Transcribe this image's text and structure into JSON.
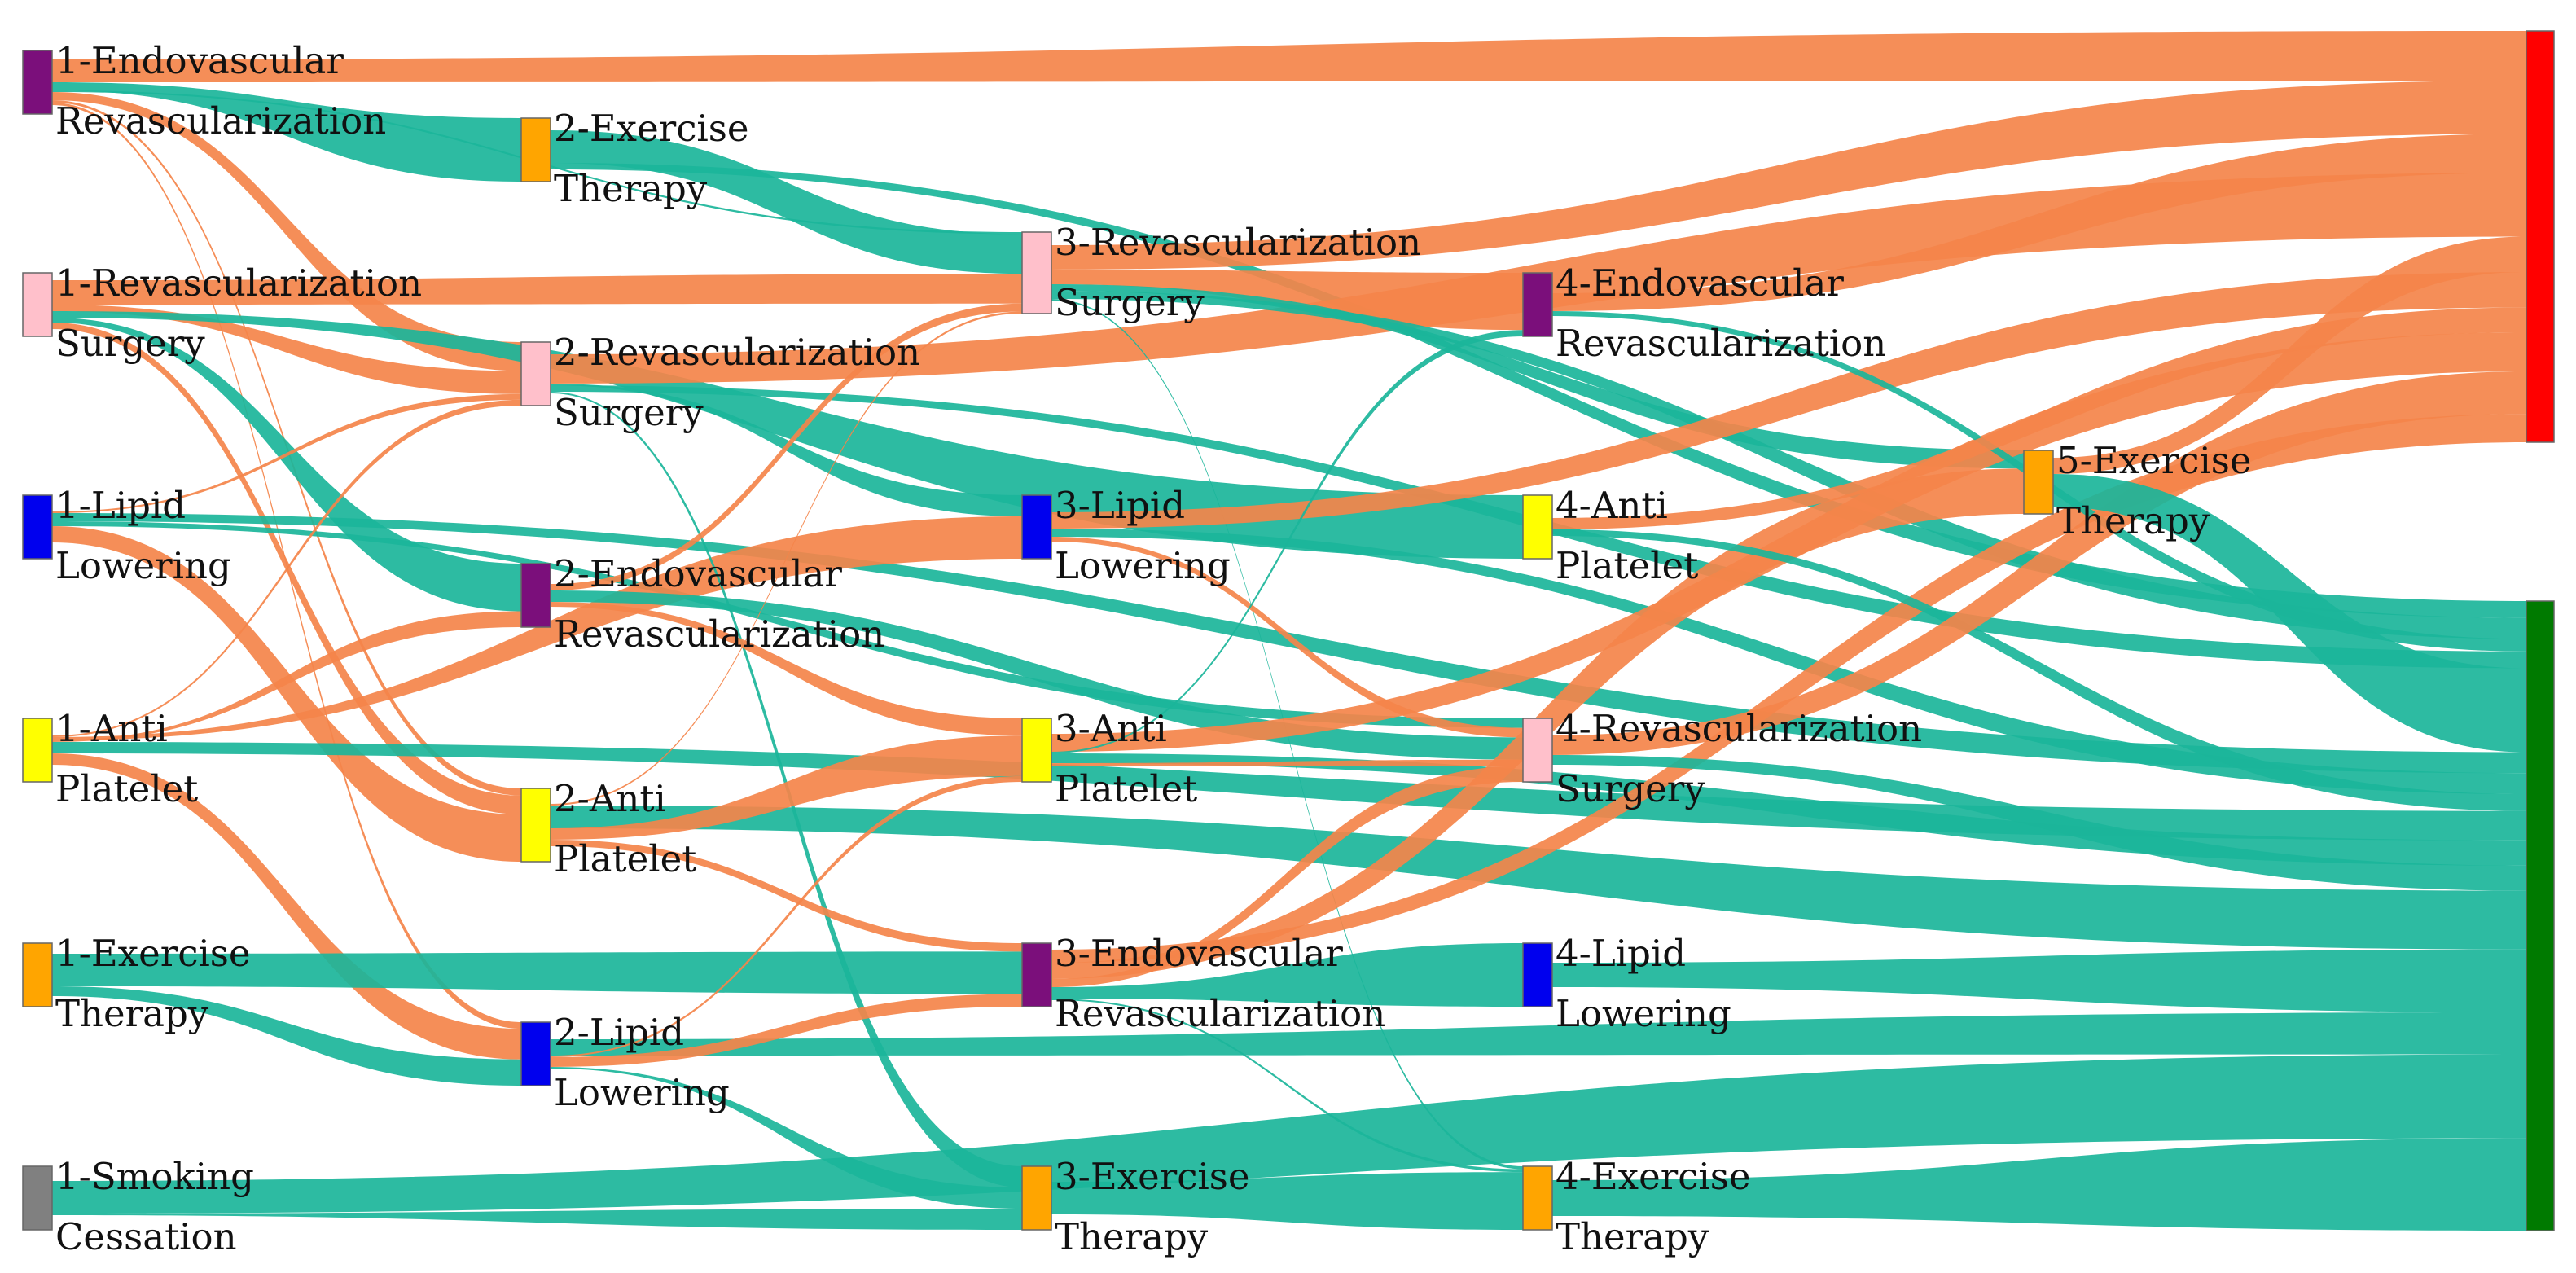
{
  "colors": {
    "amputation_flow": "#f4844a",
    "amputation_flow_dark": "#f06a1c",
    "survival_flow": "#1bb59a",
    "survival_flow_dark": "#12a389",
    "endovascular": "#7b0f7b",
    "revascularization_surgery": "#ffc0cb",
    "lipid_lowering": "#0000ee",
    "anti_platelet": "#ffff00",
    "exercise_therapy": "#ffa500",
    "smoking_cessation": "#808080",
    "outcome_red": "#ff0000",
    "outcome_green": "#007a00",
    "node_stroke": "#666666"
  },
  "nodes": [
    {
      "id": "n1_endo",
      "lines": [
        "1-Endovascular",
        "Revascularization"
      ],
      "color": "endovascular"
    },
    {
      "id": "n1_surg",
      "lines": [
        "1-Revascularization",
        "Surgery"
      ],
      "color": "revascularization_surgery"
    },
    {
      "id": "n1_lipid",
      "lines": [
        "1-Lipid",
        "Lowering"
      ],
      "color": "lipid_lowering"
    },
    {
      "id": "n1_anti",
      "lines": [
        "1-Anti",
        "Platelet"
      ],
      "color": "anti_platelet"
    },
    {
      "id": "n1_exer",
      "lines": [
        "1-Exercise",
        "Therapy"
      ],
      "color": "exercise_therapy"
    },
    {
      "id": "n1_smoke",
      "lines": [
        "1-Smoking",
        "Cessation"
      ],
      "color": "smoking_cessation"
    },
    {
      "id": "n2_exer",
      "lines": [
        "2-Exercise",
        "Therapy"
      ],
      "color": "exercise_therapy"
    },
    {
      "id": "n2_surg",
      "lines": [
        "2-Revascularization",
        "Surgery"
      ],
      "color": "revascularization_surgery"
    },
    {
      "id": "n2_endo",
      "lines": [
        "2-Endovascular",
        "Revascularization"
      ],
      "color": "endovascular"
    },
    {
      "id": "n2_anti",
      "lines": [
        "2-Anti",
        "Platelet"
      ],
      "color": "anti_platelet"
    },
    {
      "id": "n2_lipid",
      "lines": [
        "2-Lipid",
        "Lowering"
      ],
      "color": "lipid_lowering"
    },
    {
      "id": "n3_surg",
      "lines": [
        "3-Revascularization",
        "Surgery"
      ],
      "color": "revascularization_surgery"
    },
    {
      "id": "n3_lipid",
      "lines": [
        "3-Lipid",
        "Lowering"
      ],
      "color": "lipid_lowering"
    },
    {
      "id": "n3_anti",
      "lines": [
        "3-Anti",
        "Platelet"
      ],
      "color": "anti_platelet"
    },
    {
      "id": "n3_endo",
      "lines": [
        "3-Endovascular",
        "Revascularization"
      ],
      "color": "endovascular"
    },
    {
      "id": "n3_exer",
      "lines": [
        "3-Exercise",
        "Therapy"
      ],
      "color": "exercise_therapy"
    },
    {
      "id": "n4_endo",
      "lines": [
        "4-Endovascular",
        "Revascularization"
      ],
      "color": "endovascular"
    },
    {
      "id": "n4_anti",
      "lines": [
        "4-Anti",
        "Platelet"
      ],
      "color": "anti_platelet"
    },
    {
      "id": "n4_surg",
      "lines": [
        "4-Revascularization",
        "Surgery"
      ],
      "color": "revascularization_surgery"
    },
    {
      "id": "n4_lipid",
      "lines": [
        "4-Lipid",
        "Lowering"
      ],
      "color": "lipid_lowering"
    },
    {
      "id": "n4_exer",
      "lines": [
        "4-Exercise",
        "Therapy"
      ],
      "color": "exercise_therapy"
    },
    {
      "id": "n5_exer",
      "lines": [
        "5-Exercise",
        "Therapy"
      ],
      "color": "exercise_therapy"
    },
    {
      "id": "out_red",
      "lines": [],
      "color": "outcome_red"
    },
    {
      "id": "out_green",
      "lines": [],
      "color": "outcome_green"
    }
  ],
  "links": [
    {
      "s": "n1_endo",
      "t": "out_red",
      "w": 28,
      "c": "o"
    },
    {
      "s": "n1_endo",
      "t": "n2_exer",
      "w": 10,
      "c": "g"
    },
    {
      "s": "n1_endo",
      "t": "n2_surg",
      "w": 10,
      "c": "o"
    },
    {
      "s": "n1_endo",
      "t": "n2_anti",
      "w": 3,
      "c": "o"
    },
    {
      "s": "n1_endo",
      "t": "n2_lipid",
      "w": 3,
      "c": "o"
    },
    {
      "s": "n1_endo",
      "t": "n3_surg",
      "w": 2,
      "c": "g"
    },
    {
      "s": "n1_surg",
      "t": "n3_surg",
      "w": 30,
      "c": "o"
    },
    {
      "s": "n1_surg",
      "t": "n2_surg",
      "w": 8,
      "c": "o"
    },
    {
      "s": "n1_surg",
      "t": "n4_anti",
      "w": 8,
      "c": "g"
    },
    {
      "s": "n1_surg",
      "t": "n2_anti",
      "w": 8,
      "c": "o"
    },
    {
      "s": "n1_surg",
      "t": "n2_endo",
      "w": 6,
      "c": "g"
    },
    {
      "s": "n1_lipid",
      "t": "n2_anti",
      "w": 20,
      "c": "o"
    },
    {
      "s": "n1_lipid",
      "t": "out_green",
      "w": 10,
      "c": "g"
    },
    {
      "s": "n1_lipid",
      "t": "n2_surg",
      "w": 2,
      "c": "o"
    },
    {
      "s": "n1_lipid",
      "t": "n4_surg",
      "w": 6,
      "c": "g"
    },
    {
      "s": "n1_anti",
      "t": "n2_lipid",
      "w": 14,
      "c": "o"
    },
    {
      "s": "n1_anti",
      "t": "out_green",
      "w": 14,
      "c": "g"
    },
    {
      "s": "n1_anti",
      "t": "n3_lipid",
      "w": 4,
      "c": "o"
    },
    {
      "s": "n1_anti",
      "t": "n2_surg",
      "w": 2,
      "c": "o"
    },
    {
      "s": "n1_anti",
      "t": "n2_endo",
      "w": 2,
      "c": "o"
    },
    {
      "s": "n1_exer",
      "t": "n3_endo",
      "w": 40,
      "c": "g"
    },
    {
      "s": "n1_exer",
      "t": "n2_lipid",
      "w": 12,
      "c": "g"
    },
    {
      "s": "n1_smoke",
      "t": "out_green",
      "w": 40,
      "c": "g"
    },
    {
      "s": "n1_smoke",
      "t": "n3_exer",
      "w": 2,
      "c": "g"
    },
    {
      "s": "n2_exer",
      "t": "n3_surg",
      "w": 40,
      "c": "g"
    },
    {
      "s": "n2_exer",
      "t": "out_green",
      "w": 8,
      "c": "g"
    },
    {
      "s": "n2_surg",
      "t": "out_red",
      "w": 36,
      "c": "o"
    },
    {
      "s": "n2_surg",
      "t": "out_green",
      "w": 8,
      "c": "g"
    },
    {
      "s": "n2_surg",
      "t": "n3_lipid",
      "w": 2,
      "c": "g"
    },
    {
      "s": "n2_surg",
      "t": "n3_exer",
      "w": 2,
      "c": "g"
    },
    {
      "s": "n2_endo",
      "t": "n4_surg",
      "w": 14,
      "c": "g"
    },
    {
      "s": "n2_endo",
      "t": "n3_surg",
      "w": 8,
      "c": "o"
    },
    {
      "s": "n2_endo",
      "t": "n3_anti",
      "w": 6,
      "c": "o"
    },
    {
      "s": "n2_anti",
      "t": "out_green",
      "w": 28,
      "c": "g"
    },
    {
      "s": "n2_anti",
      "t": "n3_anti",
      "w": 14,
      "c": "o"
    },
    {
      "s": "n2_anti",
      "t": "n3_endo",
      "w": 8,
      "c": "o"
    },
    {
      "s": "n2_anti",
      "t": "n3_surg",
      "w": 2,
      "c": "o"
    },
    {
      "s": "n2_lipid",
      "t": "out_green",
      "w": 20,
      "c": "g"
    },
    {
      "s": "n2_lipid",
      "t": "n3_endo",
      "w": 12,
      "c": "o"
    },
    {
      "s": "n2_lipid",
      "t": "n3_anti",
      "w": 2,
      "c": "o"
    },
    {
      "s": "n2_lipid",
      "t": "n3_exer",
      "w": 2,
      "c": "g"
    },
    {
      "s": "n3_surg",
      "t": "out_red",
      "w": 30,
      "c": "o"
    },
    {
      "s": "n3_surg",
      "t": "n4_endo",
      "w": 18,
      "c": "o"
    },
    {
      "s": "n3_surg",
      "t": "n5_exer",
      "w": 8,
      "c": "g"
    },
    {
      "s": "n3_surg",
      "t": "out_green",
      "w": 10,
      "c": "g"
    },
    {
      "s": "n3_surg",
      "t": "n4_exer",
      "w": 2,
      "c": "g"
    },
    {
      "s": "n3_lipid",
      "t": "out_red",
      "w": 20,
      "c": "o"
    },
    {
      "s": "n3_lipid",
      "t": "out_green",
      "w": 10,
      "c": "g"
    },
    {
      "s": "n3_lipid",
      "t": "n4_surg",
      "w": 6,
      "c": "o"
    },
    {
      "s": "n3_anti",
      "t": "out_red",
      "w": 22,
      "c": "o"
    },
    {
      "s": "n3_anti",
      "t": "out_green",
      "w": 12,
      "c": "g"
    },
    {
      "s": "n3_anti",
      "t": "n4_surg",
      "w": 4,
      "c": "o"
    },
    {
      "s": "n3_anti",
      "t": "n4_endo",
      "w": 2,
      "c": "g"
    },
    {
      "s": "n3_endo",
      "t": "n5_exer",
      "w": 20,
      "c": "o"
    },
    {
      "s": "n3_endo",
      "t": "n4_surg",
      "w": 10,
      "c": "o"
    },
    {
      "s": "n3_endo",
      "t": "n4_lipid",
      "w": 14,
      "c": "g"
    },
    {
      "s": "n3_endo",
      "t": "out_red",
      "w": 16,
      "c": "o"
    },
    {
      "s": "n3_endo",
      "t": "n4_exer",
      "w": 2,
      "c": "g"
    },
    {
      "s": "n3_exer",
      "t": "n4_exer",
      "w": 40,
      "c": "g"
    },
    {
      "s": "n4_endo",
      "t": "out_red",
      "w": 22,
      "c": "o"
    },
    {
      "s": "n4_endo",
      "t": "out_green",
      "w": 6,
      "c": "g"
    },
    {
      "s": "n4_anti",
      "t": "out_red",
      "w": 14,
      "c": "o"
    },
    {
      "s": "n4_anti",
      "t": "out_green",
      "w": 8,
      "c": "g"
    },
    {
      "s": "n4_surg",
      "t": "out_red",
      "w": 24,
      "c": "o"
    },
    {
      "s": "n4_surg",
      "t": "out_green",
      "w": 12,
      "c": "g"
    },
    {
      "s": "n4_lipid",
      "t": "out_green",
      "w": 30,
      "c": "g"
    },
    {
      "s": "n4_exer",
      "t": "out_green",
      "w": 44,
      "c": "g"
    },
    {
      "s": "n5_exer",
      "t": "out_red",
      "w": 20,
      "c": "o"
    },
    {
      "s": "n5_exer",
      "t": "out_green",
      "w": 40,
      "c": "g"
    }
  ]
}
